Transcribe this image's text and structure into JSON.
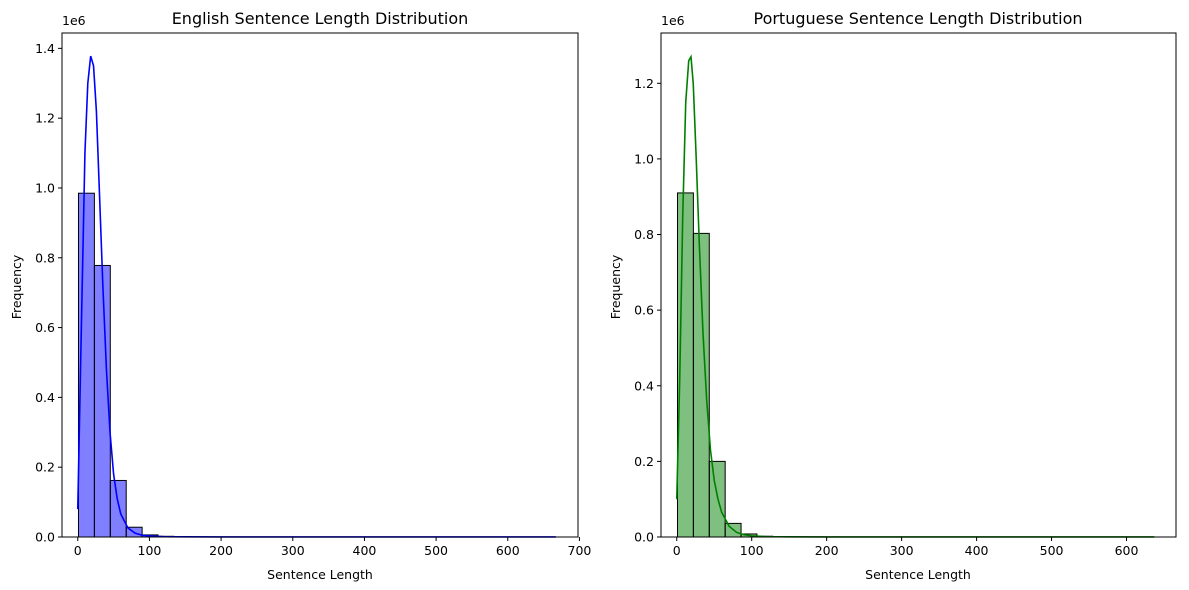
{
  "chart_data": [
    {
      "type": "histogram",
      "title": "English Sentence Length Distribution",
      "xlabel": "Sentence Length",
      "ylabel": "Frequency",
      "y_offset_label": "1e6",
      "xlim": [
        -22,
        698
      ],
      "ylim": [
        0,
        1.444
      ],
      "xticks": [
        0,
        100,
        200,
        300,
        400,
        500,
        600,
        700
      ],
      "yticks": [
        0.0,
        0.2,
        0.4,
        0.6,
        0.8,
        1.0,
        1.2,
        1.4
      ],
      "bar_color": "#0000ff",
      "bar_alpha": 0.5,
      "kde_color": "#0000ff",
      "bin_edges": [
        1,
        23.2,
        45.4,
        67.6,
        89.8,
        112,
        134.2,
        156.4,
        178.6,
        200.8,
        223,
        245.2,
        267.4,
        289.6,
        311.8,
        334,
        356.2,
        378.4,
        400.6,
        422.8,
        445,
        467.2,
        489.4,
        511.6,
        533.8,
        556,
        578.2,
        600.4,
        622.6,
        644.8,
        667
      ],
      "values": [
        0.985,
        0.778,
        0.162,
        0.028,
        0.006,
        0.002,
        0.001,
        0.0005,
        0.0003,
        0.0002,
        0.0001,
        0.0001,
        0.0001,
        0.0001,
        0.0001,
        0.0001,
        0.0001,
        0.0001,
        0.0001,
        0.0001,
        0.0001,
        0.0001,
        0.0001,
        0.0001,
        0.0001,
        0.0001,
        0.0001,
        0.0001,
        0.0001,
        0.0001
      ],
      "kde": {
        "x": [
          0,
          5,
          10,
          14,
          18,
          22,
          26,
          30,
          35,
          40,
          45,
          50,
          55,
          60,
          70,
          80,
          90,
          100,
          120,
          150,
          200,
          300,
          400,
          500,
          600,
          667
        ],
        "y": [
          0.08,
          0.6,
          1.1,
          1.3,
          1.378,
          1.35,
          1.22,
          1.0,
          0.72,
          0.48,
          0.3,
          0.18,
          0.11,
          0.066,
          0.026,
          0.011,
          0.005,
          0.003,
          0.001,
          0.0005,
          0.0002,
          0.0001,
          0.0001,
          0.0001,
          0.0001,
          0.0001
        ]
      }
    },
    {
      "type": "histogram",
      "title": "Portuguese Sentence Length Distribution",
      "xlabel": "Sentence Length",
      "ylabel": "Frequency",
      "y_offset_label": "1e6",
      "xlim": [
        -21,
        666
      ],
      "ylim": [
        0,
        1.333
      ],
      "xticks": [
        0,
        100,
        200,
        300,
        400,
        500,
        600
      ],
      "yticks": [
        0.0,
        0.2,
        0.4,
        0.6,
        0.8,
        1.0,
        1.2
      ],
      "bar_color": "#008000",
      "bar_alpha": 0.5,
      "kde_color": "#008000",
      "bin_edges": [
        1,
        22.2,
        43.4,
        64.6,
        85.8,
        107,
        128.2,
        149.4,
        170.6,
        191.8,
        213,
        234.2,
        255.4,
        276.6,
        297.8,
        319,
        340.2,
        361.4,
        382.6,
        403.8,
        425,
        446.2,
        467.4,
        488.6,
        509.8,
        531,
        552.2,
        573.4,
        594.6,
        615.8,
        637
      ],
      "values": [
        0.91,
        0.803,
        0.2,
        0.036,
        0.008,
        0.002,
        0.001,
        0.0005,
        0.0003,
        0.0002,
        0.0001,
        0.0001,
        0.0001,
        0.0001,
        0.0001,
        0.0001,
        0.0001,
        0.0001,
        0.0001,
        0.0001,
        0.0001,
        0.0001,
        0.0001,
        0.0001,
        0.0001,
        0.0001,
        0.0001,
        0.0001,
        0.0001,
        0.0001
      ],
      "kde": {
        "x": [
          0,
          4,
          8,
          12,
          16,
          19,
          22,
          26,
          30,
          35,
          40,
          45,
          50,
          55,
          60,
          70,
          80,
          90,
          100,
          120,
          150,
          200,
          300,
          400,
          500,
          600,
          637
        ],
        "y": [
          0.1,
          0.42,
          0.85,
          1.15,
          1.26,
          1.27,
          1.2,
          1.0,
          0.78,
          0.54,
          0.36,
          0.23,
          0.15,
          0.1,
          0.065,
          0.028,
          0.012,
          0.006,
          0.003,
          0.001,
          0.0005,
          0.0002,
          0.0001,
          0.0001,
          0.0001,
          0.0001,
          0.0001
        ]
      }
    }
  ]
}
